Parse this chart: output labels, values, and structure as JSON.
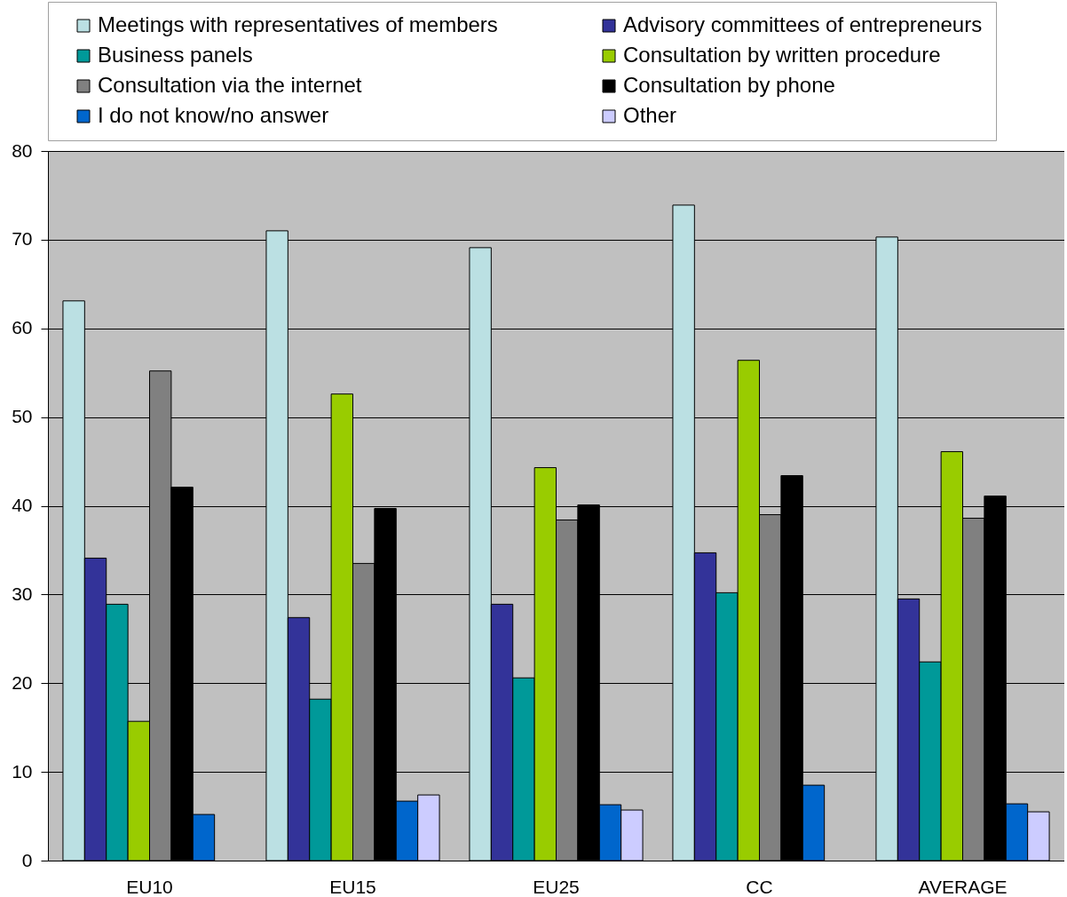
{
  "chart_data": {
    "type": "bar",
    "categories": [
      "EU10",
      "EU15",
      "EU25",
      "CC",
      "AVERAGE"
    ],
    "series": [
      {
        "name": "Meetings with representatives of members",
        "color": "#bbe0e3",
        "values": [
          63.1,
          71.0,
          69.1,
          73.9,
          70.3
        ]
      },
      {
        "name": "Advisory committees of entrepreneurs",
        "color": "#333399",
        "values": [
          34.1,
          27.4,
          28.9,
          34.7,
          29.5
        ]
      },
      {
        "name": "Business panels",
        "color": "#009999",
        "values": [
          28.9,
          18.2,
          20.6,
          30.2,
          22.4
        ]
      },
      {
        "name": "Consultation by written procedure",
        "color": "#99cc00",
        "values": [
          15.7,
          52.6,
          44.3,
          56.4,
          46.1
        ]
      },
      {
        "name": "Consultation via the internet",
        "color": "#808080",
        "values": [
          55.2,
          33.5,
          38.4,
          39.0,
          38.6
        ]
      },
      {
        "name": "Consultation by phone",
        "color": "#000000",
        "values": [
          42.1,
          39.7,
          40.1,
          43.4,
          41.1
        ]
      },
      {
        "name": "I do not know/no answer",
        "color": "#0066cc",
        "values": [
          5.2,
          6.7,
          6.3,
          8.5,
          6.4
        ]
      },
      {
        "name": "Other",
        "color": "#ccccff",
        "values": [
          null,
          7.4,
          5.7,
          null,
          5.5
        ]
      }
    ],
    "ylim": [
      0,
      80
    ],
    "yticks": [
      0,
      10,
      20,
      30,
      40,
      50,
      60,
      70,
      80
    ],
    "grid": "y",
    "legend": "top"
  }
}
